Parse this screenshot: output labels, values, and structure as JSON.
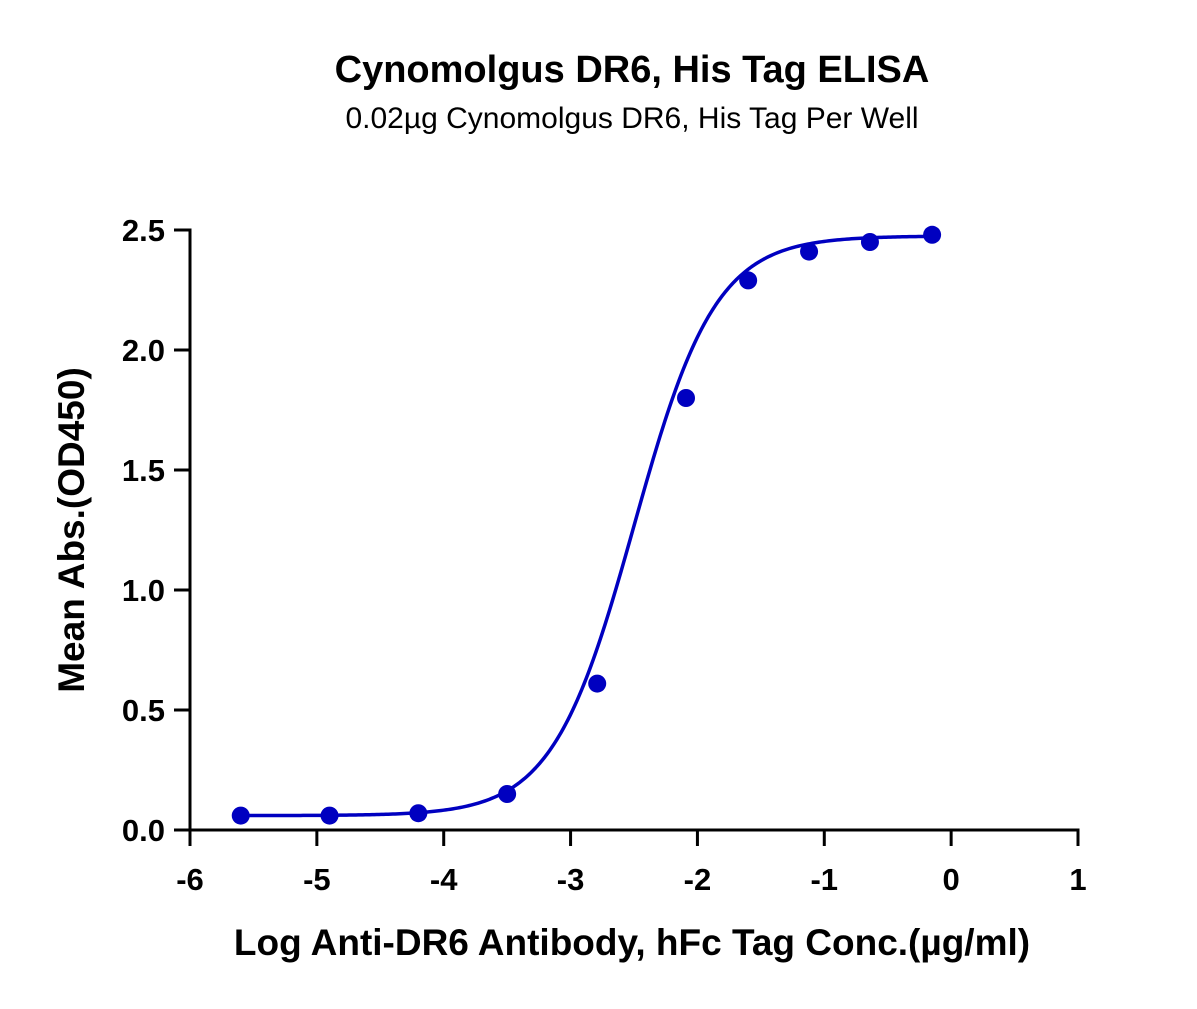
{
  "chart_data": {
    "type": "scatter",
    "title": "Cynomolgus DR6, His Tag ELISA",
    "subtitle": "0.02µg Cynomolgus DR6, His Tag Per Well",
    "xlabel": "Log Anti-DR6 Antibody, hFc Tag Conc.(µg/ml)",
    "ylabel": "Mean Abs.(OD450)",
    "xlim": [
      -6,
      1
    ],
    "ylim": [
      0,
      2.5
    ],
    "xticks": [
      "-6",
      "-5",
      "-4",
      "-3",
      "-2",
      "-1",
      "0",
      "1"
    ],
    "yticks": [
      "0.0",
      "0.5",
      "1.0",
      "1.5",
      "2.0",
      "2.5"
    ],
    "grid": false,
    "series": [
      {
        "color": "#0000c0",
        "x": [
          -5.6,
          -4.9,
          -4.2,
          -3.5,
          -2.79,
          -2.09,
          -1.6,
          -1.12,
          -0.64,
          -0.15
        ],
        "y": [
          0.06,
          0.06,
          0.07,
          0.15,
          0.61,
          1.8,
          2.29,
          2.41,
          2.45,
          2.48
        ],
        "fit": {
          "model": "4PL",
          "bottom": 0.06,
          "top": 2.475,
          "logEC50": -2.5,
          "hill": 1.35,
          "x_range": [
            -5.6,
            -0.15
          ]
        }
      }
    ]
  }
}
